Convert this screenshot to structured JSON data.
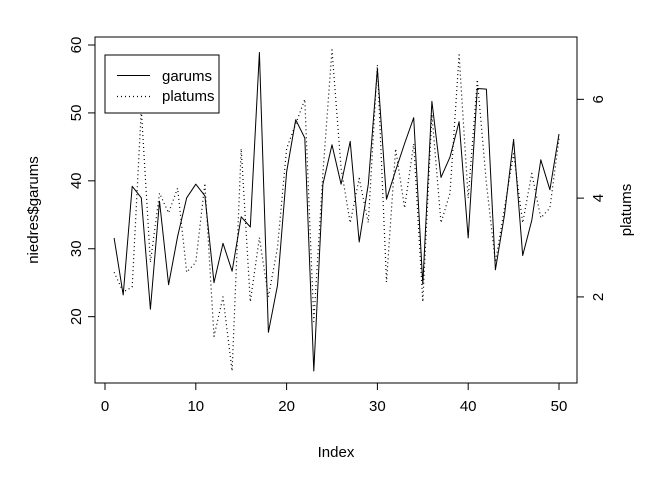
{
  "chart_data": {
    "type": "line",
    "xlabel": "Index",
    "ylabel": "niedres$garums",
    "ylabel_right": "platums",
    "x": [
      1,
      2,
      3,
      4,
      5,
      6,
      7,
      8,
      9,
      10,
      11,
      12,
      13,
      14,
      15,
      16,
      17,
      18,
      19,
      20,
      21,
      22,
      23,
      24,
      25,
      26,
      27,
      28,
      29,
      30,
      31,
      32,
      33,
      34,
      35,
      36,
      37,
      38,
      39,
      40,
      41,
      42,
      43,
      44,
      45,
      46,
      47,
      48,
      49,
      50
    ],
    "xlim": [
      0,
      50
    ],
    "xticks": [
      0,
      10,
      20,
      30,
      40,
      50
    ],
    "ylim": [
      12,
      60
    ],
    "yticks": [
      20,
      30,
      40,
      50,
      60
    ],
    "ylim_right": [
      0.5,
      7.1
    ],
    "yticks_right": [
      2,
      4,
      6
    ],
    "legend_position": "top-left",
    "series": [
      {
        "name": "garums",
        "axis": "left",
        "line_style": "solid",
        "values": [
          31.6,
          23.2,
          39.2,
          37.5,
          21.1,
          37.0,
          24.7,
          31.8,
          37.5,
          39.5,
          37.8,
          25.0,
          30.8,
          26.7,
          34.7,
          33.2,
          58.9,
          17.7,
          24.6,
          41.3,
          49.0,
          46.3,
          12.0,
          39.5,
          45.3,
          39.5,
          45.8,
          31.0,
          39.5,
          56.5,
          37.3,
          41.5,
          45.5,
          49.3,
          24.8,
          51.7,
          40.5,
          43.5,
          48.7,
          31.6,
          53.6,
          53.5,
          26.9,
          35.0,
          46.1,
          29.0,
          34.2,
          43.1,
          38.7,
          46.9
        ]
      },
      {
        "name": "platums",
        "axis": "right",
        "line_style": "dotted",
        "values": [
          2.5,
          2.1,
          2.2,
          5.8,
          2.7,
          4.1,
          3.7,
          4.2,
          2.5,
          2.7,
          4.3,
          1.2,
          2.0,
          0.5,
          5.0,
          1.9,
          3.2,
          2.0,
          3.0,
          5.0,
          5.5,
          6.0,
          1.5,
          4.5,
          7.0,
          4.6,
          3.5,
          4.4,
          3.5,
          6.7,
          2.3,
          5.0,
          3.8,
          5.1,
          1.9,
          5.7,
          3.5,
          4.1,
          6.9,
          4.0,
          6.4,
          4.3,
          2.7,
          3.8,
          4.9,
          3.5,
          4.5,
          3.6,
          3.8,
          5.2
        ]
      }
    ]
  }
}
